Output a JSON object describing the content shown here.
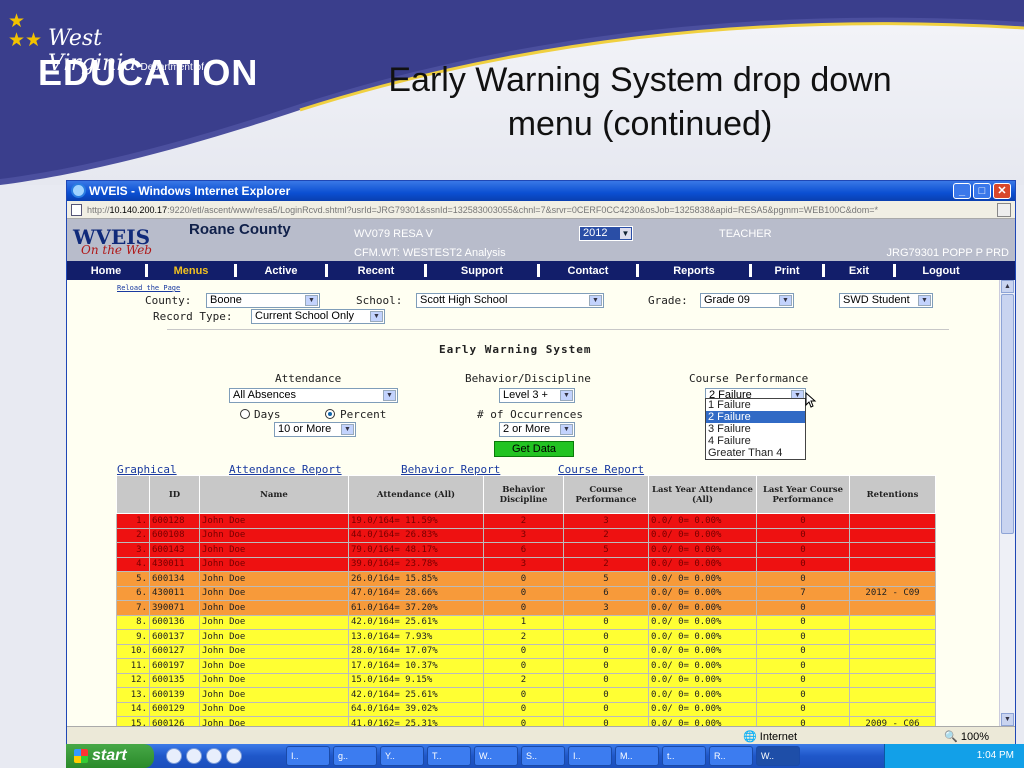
{
  "slide": {
    "logo_line1": "West Virginia",
    "logo_dept": "Department of",
    "logo_line2": "EDUCATION",
    "title_line1": "Early Warning System drop down",
    "title_line2": "menu (continued)"
  },
  "browser": {
    "title": "WVEIS - Windows Internet Explorer",
    "url_prefix": "http://",
    "url_host": "10.140.200.17",
    "url_rest": ":9220/etl/ascent/www/resa5/LoginRcvd.shtml?usrId=JRG79301&ssnId=132583003055&chnl=7&srvr=0CERF0CC4230&osJob=1325838&apid=RESA5&pgmm=WEB100C&dom=*",
    "status_zone": "Internet",
    "zoom": "100%"
  },
  "app_header": {
    "logo_text": "WVEIS",
    "logo_sub": "On the Web",
    "county": "Roane County",
    "resa": "WV079 RESA V",
    "analysis": "CFM.WT: WESTEST2 Analysis",
    "year": "2012",
    "role": "TEACHER",
    "user": "JRG79301 POPP P PRD"
  },
  "nav": [
    "Home",
    "Menus",
    "Active",
    "Recent",
    "Support",
    "Contact",
    "Reports",
    "Print",
    "Exit",
    "Logout"
  ],
  "nav_active": "Menus",
  "filters": {
    "reload": "Reload the Page",
    "county_label": "County:",
    "county_value": "Boone",
    "school_label": "School:",
    "school_value": "Scott High School",
    "grade_label": "Grade:",
    "grade_value": "Grade 09",
    "swd_value": "SWD Student",
    "record_label": "Record Type:",
    "record_value": "Current School Only"
  },
  "ews": {
    "title": "Early Warning System",
    "attendance_label": "Attendance",
    "attendance_value": "All Absences",
    "days_label": "Days",
    "percent_label": "Percent",
    "attendance_threshold": "10 or More",
    "behavior_label": "Behavior/Discipline",
    "behavior_value": "Level 3 +",
    "occurrences_label": "# of Occurrences",
    "occurrences_value": "2 or More",
    "get_data": "Get Data",
    "course_label": "Course Performance",
    "course_value": "2 Failure",
    "course_options": [
      "1 Failure",
      "2 Failure",
      "3 Failure",
      "4 Failure",
      "Greater Than 4"
    ],
    "course_selected_index": 1
  },
  "report_links": [
    "Graphical",
    "Attendance Report",
    "Behavior Report",
    "Course Report"
  ],
  "table": {
    "headers": [
      "ID",
      "Name",
      "Attendance (All)",
      "Behavior Discipline",
      "Course Performance",
      "Last Year Attendance (All)",
      "Last Year Course Performance",
      "Retentions"
    ],
    "rows": [
      {
        "n": "1.",
        "id": "600128",
        "name": "John Doe",
        "att": "19.0/164= 11.59%",
        "beh": "2",
        "course": "3",
        "ly_att": "0.0/ 0= 0.00%",
        "ly_course": "0",
        "ret": "",
        "level": "red"
      },
      {
        "n": "2.",
        "id": "600108",
        "name": "John Doe",
        "att": "44.0/164= 26.83%",
        "beh": "3",
        "course": "2",
        "ly_att": "0.0/ 0= 0.00%",
        "ly_course": "0",
        "ret": "",
        "level": "red"
      },
      {
        "n": "3.",
        "id": "600143",
        "name": "John Doe",
        "att": "79.0/164= 48.17%",
        "beh": "6",
        "course": "5",
        "ly_att": "0.0/ 0= 0.00%",
        "ly_course": "0",
        "ret": "",
        "level": "red"
      },
      {
        "n": "4.",
        "id": "430011",
        "name": "John Doe",
        "att": "39.0/164= 23.78%",
        "beh": "3",
        "course": "2",
        "ly_att": "0.0/ 0= 0.00%",
        "ly_course": "0",
        "ret": "",
        "level": "red"
      },
      {
        "n": "5.",
        "id": "600134",
        "name": "John Doe",
        "att": "26.0/164= 15.85%",
        "beh": "0",
        "course": "5",
        "ly_att": "0.0/ 0= 0.00%",
        "ly_course": "0",
        "ret": "",
        "level": "orange"
      },
      {
        "n": "6.",
        "id": "430011",
        "name": "John Doe",
        "att": "47.0/164= 28.66%",
        "beh": "0",
        "course": "6",
        "ly_att": "0.0/ 0= 0.00%",
        "ly_course": "7",
        "ret": "2012 - C09",
        "level": "orange"
      },
      {
        "n": "7.",
        "id": "390071",
        "name": "John Doe",
        "att": "61.0/164= 37.20%",
        "beh": "0",
        "course": "3",
        "ly_att": "0.0/ 0= 0.00%",
        "ly_course": "0",
        "ret": "",
        "level": "orange"
      },
      {
        "n": "8.",
        "id": "600136",
        "name": "John Doe",
        "att": "42.0/164= 25.61%",
        "beh": "1",
        "course": "0",
        "ly_att": "0.0/ 0= 0.00%",
        "ly_course": "0",
        "ret": "",
        "level": "yellow"
      },
      {
        "n": "9.",
        "id": "600137",
        "name": "John Doe",
        "att": "13.0/164= 7.93%",
        "beh": "2",
        "course": "0",
        "ly_att": "0.0/ 0= 0.00%",
        "ly_course": "0",
        "ret": "",
        "level": "yellow"
      },
      {
        "n": "10.",
        "id": "600127",
        "name": "John Doe",
        "att": "28.0/164= 17.07%",
        "beh": "0",
        "course": "0",
        "ly_att": "0.0/ 0= 0.00%",
        "ly_course": "0",
        "ret": "",
        "level": "yellow"
      },
      {
        "n": "11.",
        "id": "600197",
        "name": "John Doe",
        "att": "17.0/164= 10.37%",
        "beh": "0",
        "course": "0",
        "ly_att": "0.0/ 0= 0.00%",
        "ly_course": "0",
        "ret": "",
        "level": "yellow"
      },
      {
        "n": "12.",
        "id": "600135",
        "name": "John Doe",
        "att": "15.0/164= 9.15%",
        "beh": "2",
        "course": "0",
        "ly_att": "0.0/ 0= 0.00%",
        "ly_course": "0",
        "ret": "",
        "level": "yellow"
      },
      {
        "n": "13.",
        "id": "600139",
        "name": "John Doe",
        "att": "42.0/164= 25.61%",
        "beh": "0",
        "course": "0",
        "ly_att": "0.0/ 0= 0.00%",
        "ly_course": "0",
        "ret": "",
        "level": "yellow"
      },
      {
        "n": "14.",
        "id": "600129",
        "name": "John Doe",
        "att": "64.0/164= 39.02%",
        "beh": "0",
        "course": "0",
        "ly_att": "0.0/ 0= 0.00%",
        "ly_course": "0",
        "ret": "",
        "level": "yellow"
      },
      {
        "n": "15.",
        "id": "600126",
        "name": "John Doe",
        "att": "41.0/162= 25.31%",
        "beh": "0",
        "course": "0",
        "ly_att": "0.0/ 0= 0.00%",
        "ly_course": "0",
        "ret": "2009 - C06",
        "level": "yellow"
      }
    ]
  },
  "taskbar": {
    "start": "start",
    "tasks": [
      "I..",
      "g..",
      "Y..",
      "T..",
      "W..",
      "S..",
      "I..",
      "M..",
      "t..",
      "R..",
      "W.."
    ],
    "clock": "1:04 PM"
  },
  "colors": {
    "red": "#ee1111",
    "orange": "#f79a3a",
    "yellow": "#ffff33",
    "nav": "#121e6a"
  }
}
